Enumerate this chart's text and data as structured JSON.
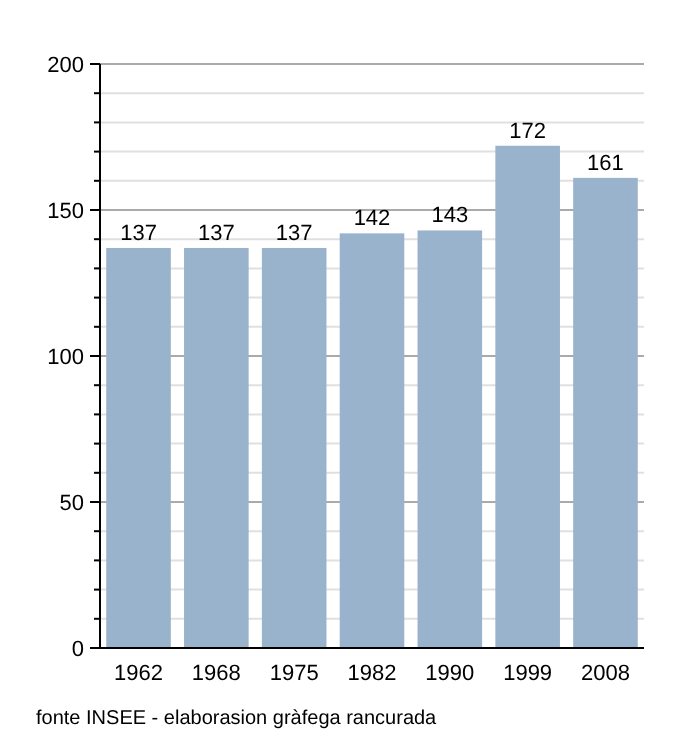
{
  "chart_data": {
    "type": "bar",
    "categories": [
      "1962",
      "1968",
      "1975",
      "1982",
      "1990",
      "1999",
      "2008"
    ],
    "values": [
      137,
      137,
      137,
      142,
      143,
      172,
      161
    ],
    "color": "#99b3cc",
    "data_labels": true,
    "grid": "y",
    "ylim": [
      0,
      200
    ],
    "yticks": [
      0,
      {
        "value": 10,
        "label": null
      },
      {
        "value": 20,
        "label": null
      },
      {
        "value": 30,
        "label": null
      },
      {
        "value": 40,
        "label": null
      },
      50,
      {
        "value": 60,
        "label": null
      },
      {
        "value": 70,
        "label": null
      },
      {
        "value": 80,
        "label": null
      },
      {
        "value": 90,
        "label": null
      },
      100,
      {
        "value": 110,
        "label": null
      },
      {
        "value": 120,
        "label": null
      },
      {
        "value": 130,
        "label": null
      },
      {
        "value": 140,
        "label": null
      },
      150,
      {
        "value": 160,
        "label": null
      },
      {
        "value": 170,
        "label": null
      },
      {
        "value": 180,
        "label": null
      },
      {
        "value": 190,
        "label": null
      },
      200
    ],
    "annotations": [
      "fonte INSEE - elaborasion gràfega rancurada"
    ]
  }
}
